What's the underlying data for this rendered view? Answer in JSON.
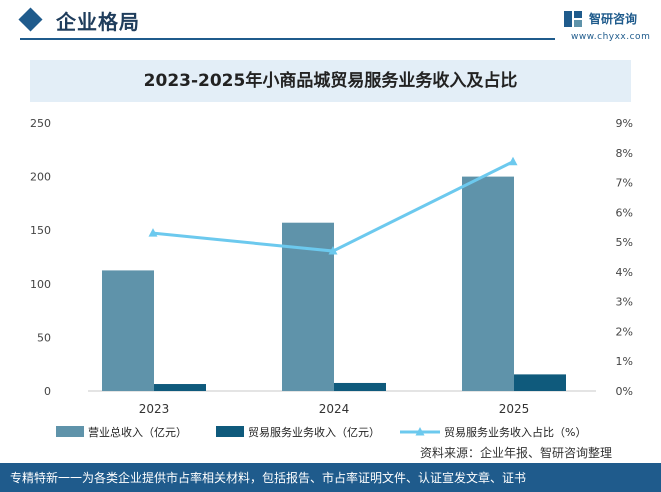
{
  "header": {
    "section_title": "企业格局",
    "logo_name": "智研咨询",
    "logo_url": "www.chyxx.com"
  },
  "colors": {
    "bar_total": "#5f93aa",
    "bar_trade": "#0f5a7c",
    "line_ratio": "#6cc9ee",
    "header_blue": "#1f5b8c",
    "title_band": "#e3eef7"
  },
  "chart_data": {
    "type": "bar",
    "title": "2023-2025年小商品城贸易服务业务收入及占比",
    "categories": [
      "2023",
      "2024",
      "2025"
    ],
    "series": [
      {
        "name": "营业总收入（亿元）",
        "type": "bar",
        "axis": "left",
        "values": [
          112.5,
          157,
          200
        ]
      },
      {
        "name": "贸易服务业务收入（亿元）",
        "type": "bar",
        "axis": "left",
        "values": [
          6.5,
          7.5,
          15.5
        ]
      },
      {
        "name": "贸易服务业务收入占比（%）",
        "type": "line",
        "axis": "right",
        "values": [
          5.3,
          4.7,
          7.7
        ]
      }
    ],
    "y_left": {
      "min": 0,
      "max": 250,
      "ticks": [
        "0",
        "50",
        "100",
        "150",
        "200",
        "250"
      ]
    },
    "y_right": {
      "min": 0,
      "max": 9,
      "ticks": [
        "0%",
        "1%",
        "2%",
        "3%",
        "4%",
        "5%",
        "6%",
        "7%",
        "8%",
        "9%"
      ]
    },
    "grid": false,
    "legend_position": "bottom"
  },
  "source": "资料来源：企业年报、智研咨询整理",
  "footer": "专精特新一一为各类企业提供市占率相关材料，包括报告、市占率证明文件、认证宣发文章、证书"
}
